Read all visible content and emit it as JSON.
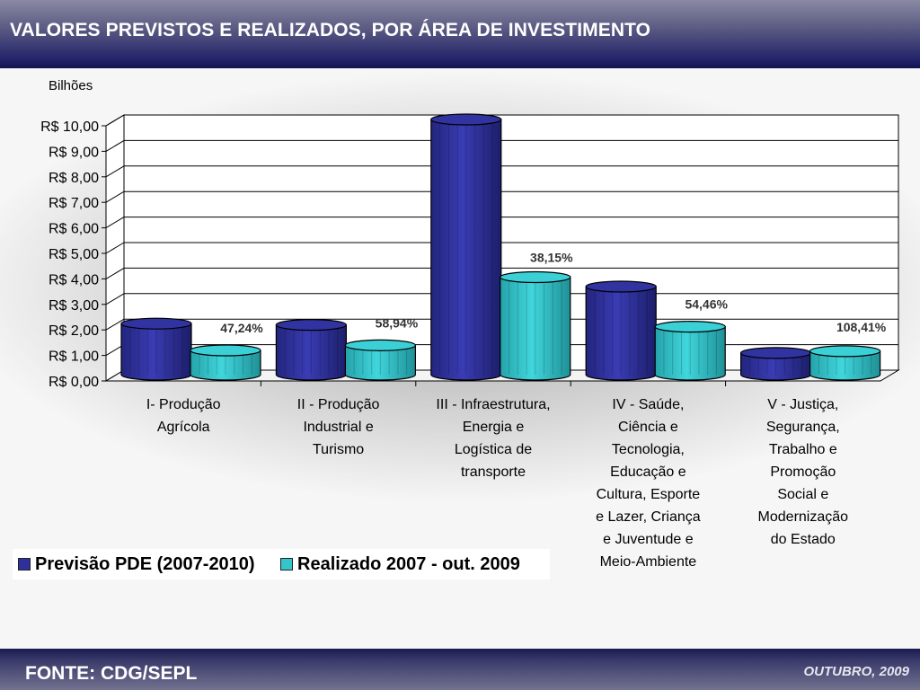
{
  "header": {
    "title": "VALORES PREVISTOS E REALIZADOS, POR ÁREA DE INVESTIMENTO"
  },
  "footer": {
    "source": "FONTE: CDG/SEPL",
    "date": "OUTUBRO, 2009"
  },
  "colors": {
    "previsao": "#2e309c",
    "realizado": "#33c4cc",
    "header": "#1a1a5e"
  },
  "chart_data": {
    "type": "bar",
    "ylabel": "Bilhões",
    "ylim": [
      0,
      10
    ],
    "yticks": [
      "R$ 0,00",
      "R$ 1,00",
      "R$ 2,00",
      "R$ 3,00",
      "R$ 4,00",
      "R$ 5,00",
      "R$ 6,00",
      "R$ 7,00",
      "R$ 8,00",
      "R$ 9,00",
      "R$ 10,00"
    ],
    "categories": [
      [
        "I- Produção",
        "Agrícola"
      ],
      [
        "II - Produção",
        "Industrial  e",
        "Turismo"
      ],
      [
        "III - Infraestrutura,",
        "Energia e",
        "Logística de",
        "transporte"
      ],
      [
        "IV - Saúde,",
        "Ciência e",
        "Tecnologia,",
        "Educação e",
        "Cultura, Esporte",
        "e Lazer, Criança",
        "e  Juventude e",
        "Meio-Ambiente"
      ],
      [
        "V - Justiça,",
        "Segurança,",
        "Trabalho e",
        "Promoção",
        "Social e",
        "Modernização",
        "do Estado"
      ]
    ],
    "series": [
      {
        "name": "Previsão PDE (2007-2010)",
        "values": [
          2.0,
          1.95,
          10.0,
          3.45,
          0.85
        ]
      },
      {
        "name": "Realizado 2007 - out. 2009",
        "values": [
          0.95,
          1.15,
          3.82,
          1.88,
          0.92
        ]
      }
    ],
    "data_labels": [
      "47,24%",
      "58,94%",
      "38,15%",
      "54,46%",
      "108,41%"
    ],
    "grid": true,
    "legend": "bottom-left"
  }
}
